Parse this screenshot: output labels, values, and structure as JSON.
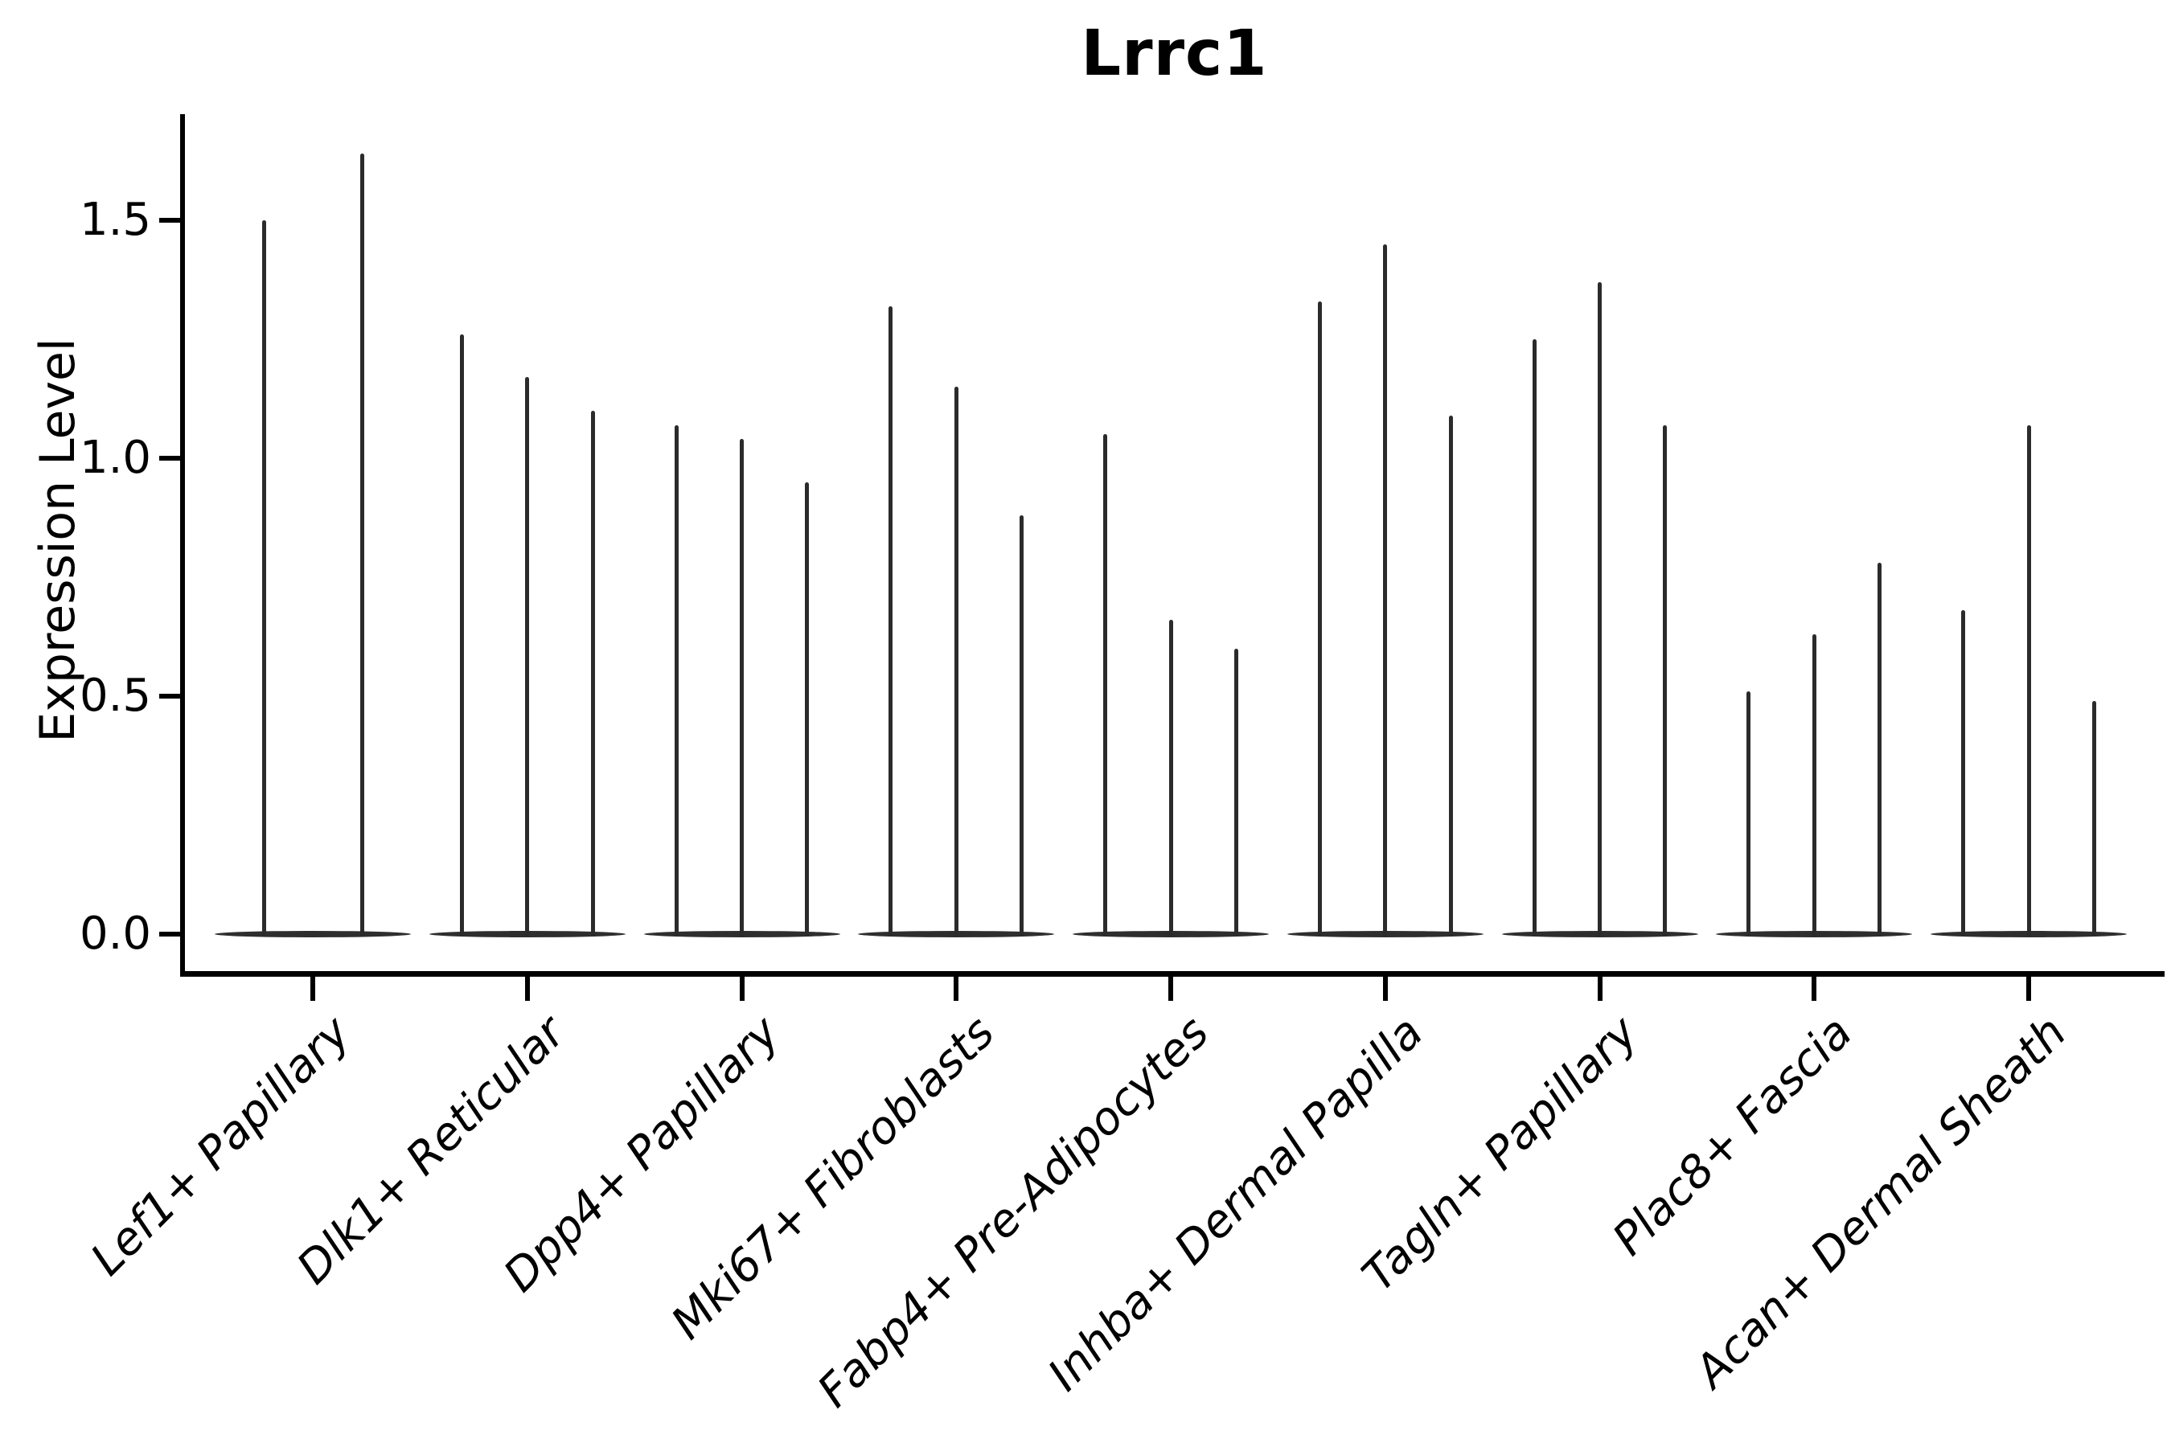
{
  "figure": {
    "background": "#ffffff"
  },
  "chart_data": {
    "type": "violin",
    "title": "Lrrc1",
    "xlabel": "",
    "ylabel": "Expression Level",
    "ylim": [
      0,
      1.72
    ],
    "yticks": [
      "0.0",
      "0.5",
      "1.0",
      "1.5"
    ],
    "ytick_values": [
      0.0,
      0.5,
      1.0,
      1.5
    ],
    "grid": false,
    "legend": "none",
    "x_tick_label_style": "italic, rotated 45deg, right-anchored",
    "categories": [
      "Lef1+ Papillary",
      "Dlk1+ Reticular",
      "Dpp4+ Papillary",
      "Mki67+ Fibroblasts",
      "Fabp4+ Pre-Adipocytes",
      "Inhba+ Dermal Papilla",
      "Tagln+ Papillary",
      "Plac8+ Fascia",
      "Acan+ Dermal Sheath"
    ],
    "groups": [
      {
        "label": "Lef1+ Papillary",
        "violin_max_values": [
          1.5,
          1.64
        ]
      },
      {
        "label": "Dlk1+ Reticular",
        "violin_max_values": [
          1.26,
          1.17,
          1.1
        ]
      },
      {
        "label": "Dpp4+ Papillary",
        "violin_max_values": [
          1.07,
          1.04,
          0.95
        ]
      },
      {
        "label": "Mki67+ Fibroblasts",
        "violin_max_values": [
          1.32,
          1.15,
          0.88
        ]
      },
      {
        "label": "Fabp4+ Pre-Adipocytes",
        "violin_max_values": [
          1.05,
          0.66,
          0.6
        ]
      },
      {
        "label": "Inhba+ Dermal Papilla",
        "violin_max_values": [
          1.33,
          1.45,
          1.09
        ]
      },
      {
        "label": "Tagln+ Papillary",
        "violin_max_values": [
          1.25,
          1.37,
          1.07
        ]
      },
      {
        "label": "Plac8+ Fascia",
        "violin_max_values": [
          0.51,
          0.63,
          0.78
        ]
      },
      {
        "label": "Acan+ Dermal Sheath",
        "violin_max_values": [
          0.68,
          1.07,
          0.49
        ]
      }
    ],
    "description": "Violin plot of Lrrc1 expression; each cluster shows 2-3 needle-thin violins (density concentrated at 0 with a thin spike to the max expression value).",
    "colors": {
      "violin": "#2b2b2b",
      "violin_base": "#2e2e2e",
      "axis": "#000000",
      "text": "#000000",
      "background": "#ffffff"
    }
  }
}
